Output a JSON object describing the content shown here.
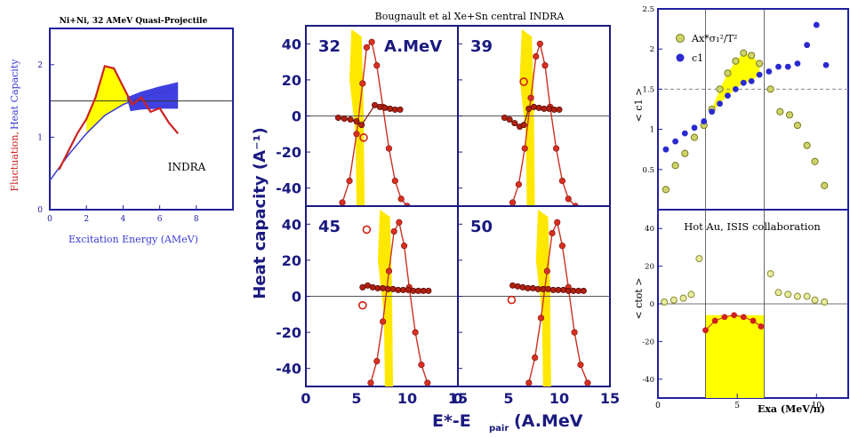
{
  "left": {
    "title": "Ni+Ni, 32 AMeV Quasi-Projectile",
    "xlabel": "Excitation Energy (AMeV)",
    "ylabel_red": "Fluctuation,",
    "ylabel_blue": "Heat Capacity",
    "label": "INDRA",
    "xticks": [
      "0",
      "2",
      "4",
      "6",
      "8"
    ],
    "yticks": [
      "0",
      "1",
      "2"
    ],
    "colors": {
      "fluct": "#cc2222",
      "heat": "#3b3bd6",
      "fill_yellow": "#ffff00",
      "fill_blue": "#4040e0",
      "axis": "#2020a0"
    }
  },
  "middle": {
    "title": "Bougnault et al Xe+Sn central  INDRA",
    "ylabel": "Heat capacity (A⁻¹)",
    "xlabel": "E*-E",
    "xlabel_sub": "pair",
    "xlabel_unit": " (A.MeV",
    "panel_unit": "A.MeV",
    "panels": [
      "32",
      "39",
      "45",
      "50"
    ],
    "yticks": [
      "-40",
      "-20",
      "0",
      "20",
      "40"
    ],
    "xticks": [
      "0",
      "5",
      "10",
      "15"
    ]
  },
  "right": {
    "top_ylabel": "< c1 >",
    "top_yticks": [
      "0.5",
      "1",
      "1.5",
      "2",
      "2.5"
    ],
    "legend_1": "Ax*σ₁²/T²",
    "legend_2": "c1",
    "bottom_ylabel": "< ctot >",
    "bottom_label": "Hot Au, ISIS collaboration",
    "bottom_yticks": [
      "-40",
      "-20",
      "0",
      "20",
      "40"
    ],
    "xticks": [
      "0",
      "5",
      "10"
    ],
    "xlabel": "Exa (MeV/n)"
  },
  "chart_data": [
    {
      "type": "line",
      "title": "Ni+Ni, 32 AMeV Quasi-Projectile",
      "xlabel": "Excitation Energy (AMeV)",
      "ylabel": "Fluctuation, Heat Capacity",
      "xlim": [
        0,
        10
      ],
      "ylim": [
        0,
        2.5
      ],
      "hline": 1.5,
      "series": [
        {
          "name": "Fluctuation",
          "x": [
            0.5,
            1,
            1.5,
            2,
            2.5,
            3,
            3.5,
            4,
            4.5,
            5,
            5.5,
            6,
            6.5,
            7
          ],
          "y": [
            0.55,
            0.8,
            1.05,
            1.25,
            1.55,
            1.98,
            1.95,
            1.7,
            1.45,
            1.55,
            1.35,
            1.4,
            1.2,
            1.05
          ]
        },
        {
          "name": "Heat Capacity",
          "x": [
            0,
            1,
            2,
            3,
            4,
            5,
            6,
            7
          ],
          "y": [
            0.4,
            0.75,
            1.05,
            1.3,
            1.45,
            1.55,
            1.62,
            1.68
          ]
        }
      ]
    },
    {
      "type": "scatter",
      "title": "Bougnault et al Xe+Sn central  INDRA",
      "xlabel": "E*-E (A.MeV)",
      "ylabel": "Heat capacity (A⁻¹)",
      "xlim": [
        0,
        15
      ],
      "ylim": [
        -50,
        50
      ],
      "series": [
        {
          "name": "32",
          "bell_x": [
            3.6,
            4.3,
            5.0,
            5.6,
            6.0,
            6.5,
            7.0,
            7.6,
            8.2,
            8.8,
            9.4,
            10.0
          ],
          "bell_y": [
            -48,
            -36,
            -10,
            18,
            38,
            41,
            28,
            5,
            -18,
            -36,
            -46,
            -50
          ],
          "flat_x": [
            3.2,
            3.8,
            4.4,
            5.0,
            5.5,
            6.8,
            7.3,
            7.8,
            8.3,
            8.8,
            9.3
          ],
          "flat_y": [
            -1,
            -1.5,
            -2,
            -3,
            -5,
            6,
            5,
            4.5,
            4,
            3.5,
            3.5
          ],
          "open": [
            [
              5.7,
              -12
            ]
          ]
        },
        {
          "name": "39",
          "bell_x": [
            5.4,
            6.0,
            6.6,
            7.2,
            7.7,
            8.1,
            8.6,
            9.1,
            9.7,
            10.3,
            10.9,
            11.6
          ],
          "bell_y": [
            -48,
            -38,
            -18,
            10,
            33,
            40,
            28,
            5,
            -18,
            -36,
            -46,
            -50
          ],
          "flat_x": [
            4.6,
            5.1,
            5.6,
            6.1,
            6.5,
            7.0,
            7.5,
            8.0,
            8.5,
            9.0,
            9.5,
            10.0
          ],
          "flat_y": [
            -1,
            -2,
            -4,
            -6,
            -5,
            4,
            5,
            4.5,
            4,
            4,
            3.5,
            3.5
          ],
          "open": [
            [
              6.5,
              19
            ]
          ]
        },
        {
          "name": "45",
          "bell_x": [
            6.4,
            7.0,
            7.6,
            8.2,
            8.7,
            9.2,
            9.7,
            10.2,
            10.8,
            11.4,
            12.0
          ],
          "bell_y": [
            -48,
            -36,
            -14,
            14,
            36,
            41,
            28,
            5,
            -20,
            -38,
            -48
          ],
          "flat_x": [
            5.6,
            6.1,
            6.6,
            7.1,
            7.6,
            8.1,
            8.6,
            9.1,
            9.6,
            10.1,
            10.6,
            11.1,
            11.6,
            12.1
          ],
          "flat_y": [
            5,
            6,
            5,
            4.5,
            4.5,
            4,
            4,
            3.5,
            3.5,
            3.5,
            3,
            3,
            3,
            3
          ],
          "open": [
            [
              6.0,
              37
            ],
            [
              5.6,
              -5
            ]
          ]
        },
        {
          "name": "50",
          "bell_x": [
            7.0,
            7.6,
            8.2,
            8.8,
            9.3,
            9.8,
            10.3,
            10.9,
            11.5,
            12.1,
            12.8
          ],
          "bell_y": [
            -48,
            -34,
            -12,
            14,
            35,
            41,
            28,
            5,
            -20,
            -38,
            -48
          ],
          "flat_x": [
            5.4,
            5.9,
            6.4,
            6.9,
            7.4,
            7.9,
            8.4,
            8.9,
            9.4,
            9.9,
            10.4,
            10.9,
            11.4,
            11.9,
            12.4
          ],
          "flat_y": [
            6,
            5.5,
            5,
            4.5,
            4.5,
            4,
            4,
            4,
            3.5,
            3.5,
            3.5,
            3,
            3,
            3,
            3
          ],
          "open": [
            [
              5.3,
              -2
            ]
          ]
        }
      ]
    },
    {
      "type": "scatter",
      "xlabel": "Exa (MeV/n)",
      "ylabel": "< c1 >",
      "xlim": [
        0,
        12
      ],
      "ylim": [
        0,
        2.5
      ],
      "hline": 1.5,
      "series": [
        {
          "name": "Ax*σ₁²/T²",
          "x": [
            0.5,
            1.1,
            1.7,
            2.3,
            2.9,
            3.4,
            3.9,
            4.4,
            4.9,
            5.4,
            5.9,
            6.4,
            7.1,
            7.7,
            8.3,
            8.8,
            9.4,
            9.9,
            10.5
          ],
          "y": [
            0.25,
            0.55,
            0.7,
            0.9,
            1.05,
            1.25,
            1.5,
            1.7,
            1.85,
            1.95,
            1.92,
            1.82,
            1.5,
            1.22,
            1.18,
            1.05,
            0.8,
            0.6,
            0.3
          ]
        },
        {
          "name": "c1",
          "x": [
            0.5,
            1.1,
            1.7,
            2.3,
            2.9,
            3.4,
            3.9,
            4.4,
            4.9,
            5.4,
            5.9,
            6.4,
            7.0,
            7.6,
            8.2,
            8.8,
            9.4,
            10.0,
            10.6
          ],
          "y": [
            0.75,
            0.85,
            0.95,
            1.02,
            1.1,
            1.22,
            1.32,
            1.42,
            1.5,
            1.58,
            1.6,
            1.68,
            1.72,
            1.78,
            1.78,
            1.82,
            2.05,
            2.3,
            1.8
          ]
        }
      ]
    },
    {
      "type": "scatter",
      "title": "Hot Au, ISIS collaboration",
      "xlabel": "Exa (MeV/n)",
      "ylabel": "< ctot >",
      "xlim": [
        0,
        12
      ],
      "ylim": [
        -50,
        50
      ],
      "series": [
        {
          "name": "open",
          "x": [
            0.4,
            1.0,
            1.6,
            2.1,
            2.6,
            7.1,
            7.6,
            8.2,
            8.8,
            9.4,
            9.9,
            10.5
          ],
          "y": [
            1,
            2,
            3,
            5,
            24,
            16,
            6,
            5,
            4,
            4,
            2,
            1
          ]
        },
        {
          "name": "filled",
          "x": [
            3.0,
            3.6,
            4.2,
            4.8,
            5.4,
            6.0,
            6.5
          ],
          "y": [
            -14,
            -9,
            -7,
            -6,
            -7,
            -9,
            -12
          ]
        }
      ]
    }
  ]
}
